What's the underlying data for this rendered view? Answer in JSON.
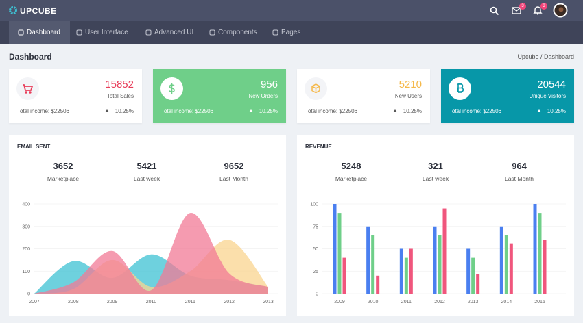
{
  "header": {
    "brand": "UPCUBE",
    "badges": {
      "mail": 3,
      "notifications": 3
    }
  },
  "nav": [
    "Dashboard",
    "User Interface",
    "Advanced UI",
    "Components",
    "Pages"
  ],
  "page_title": "Dashboard",
  "breadcrumb": "Upcube / Dashboard",
  "stat_cards": [
    {
      "value": 15852,
      "label": "Total Sales",
      "income": "Total income: $22506",
      "change": "10.25%"
    },
    {
      "value": 956,
      "label": "New Orders",
      "income": "Total income: $22506",
      "change": "10.25%"
    },
    {
      "value": 5210,
      "label": "New Users",
      "income": "Total income: $22506",
      "change": "10.25%"
    },
    {
      "value": 20544,
      "label": "Unique Visitors",
      "income": "Total income: $22506",
      "change": "10.25%"
    }
  ],
  "email_panel": {
    "title": "EMAIL SENT",
    "stats": [
      {
        "value": 3652,
        "label": "Marketplace"
      },
      {
        "value": 5421,
        "label": "Last week"
      },
      {
        "value": 9652,
        "label": "Last Month"
      }
    ],
    "chart": {
      "type": "area",
      "categories": [
        "2007",
        "2008",
        "2009",
        "2010",
        "2011",
        "2012",
        "2013"
      ],
      "series": [
        {
          "color": "#3ec1d3",
          "values": [
            0,
            145,
            70,
            175,
            80,
            60,
            30
          ]
        },
        {
          "color": "#f9d48f",
          "values": [
            0,
            20,
            150,
            30,
            100,
            240,
            30
          ]
        },
        {
          "color": "#f27a95",
          "values": [
            0,
            50,
            190,
            15,
            360,
            90,
            30
          ]
        }
      ],
      "ylim": [
        0,
        400
      ],
      "yticks": [
        0,
        100,
        200,
        300,
        400
      ],
      "grid": true
    }
  },
  "revenue_panel": {
    "title": "REVENUE",
    "stats": [
      {
        "value": 5248,
        "label": "Marketplace"
      },
      {
        "value": 321,
        "label": "Last week"
      },
      {
        "value": 964,
        "label": "Last Month"
      }
    ],
    "chart": {
      "type": "bar",
      "categories": [
        "2009",
        "2010",
        "2011",
        "2012",
        "2013",
        "2014",
        "2015"
      ],
      "series": [
        {
          "color": "#4a7ff0",
          "values": [
            100,
            75,
            50,
            75,
            50,
            75,
            100
          ]
        },
        {
          "color": "#6fcf89",
          "values": [
            90,
            65,
            40,
            65,
            40,
            65,
            90
          ]
        },
        {
          "color": "#f0567d",
          "values": [
            40,
            20,
            50,
            95,
            22,
            56,
            60
          ]
        }
      ],
      "ylim": [
        0,
        100
      ],
      "yticks": [
        0,
        25,
        50,
        75,
        100
      ],
      "grid": true
    }
  }
}
